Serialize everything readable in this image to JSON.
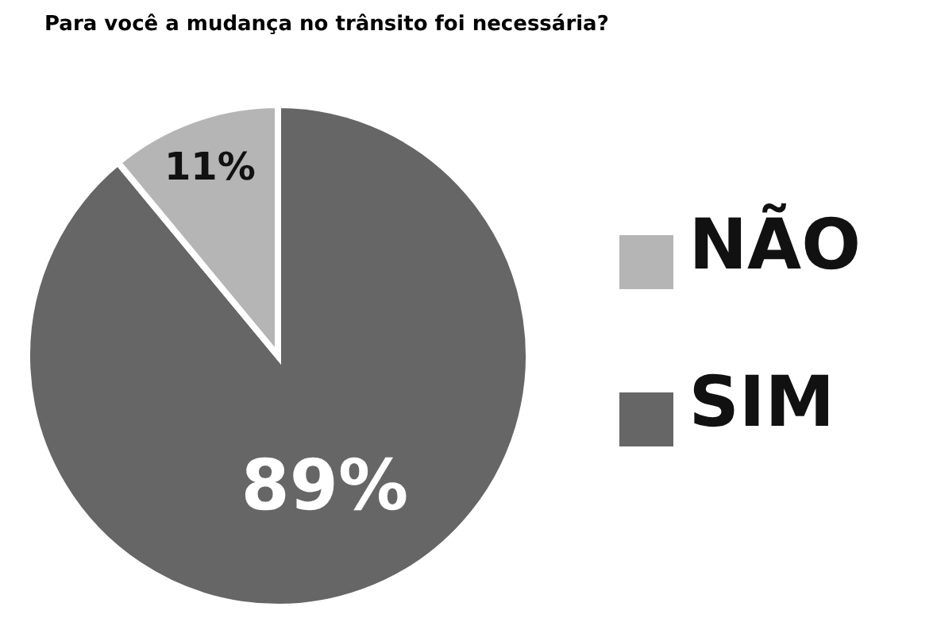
{
  "chart_data": {
    "type": "pie",
    "title": "Para você a mudança no trânsito foi necessária?",
    "categories": [
      "SIM",
      "NÃO"
    ],
    "values": [
      89,
      11
    ],
    "colors": [
      "#666666",
      "#b5b5b5"
    ],
    "value_labels": [
      "89%",
      "11%"
    ],
    "legend": "right"
  }
}
